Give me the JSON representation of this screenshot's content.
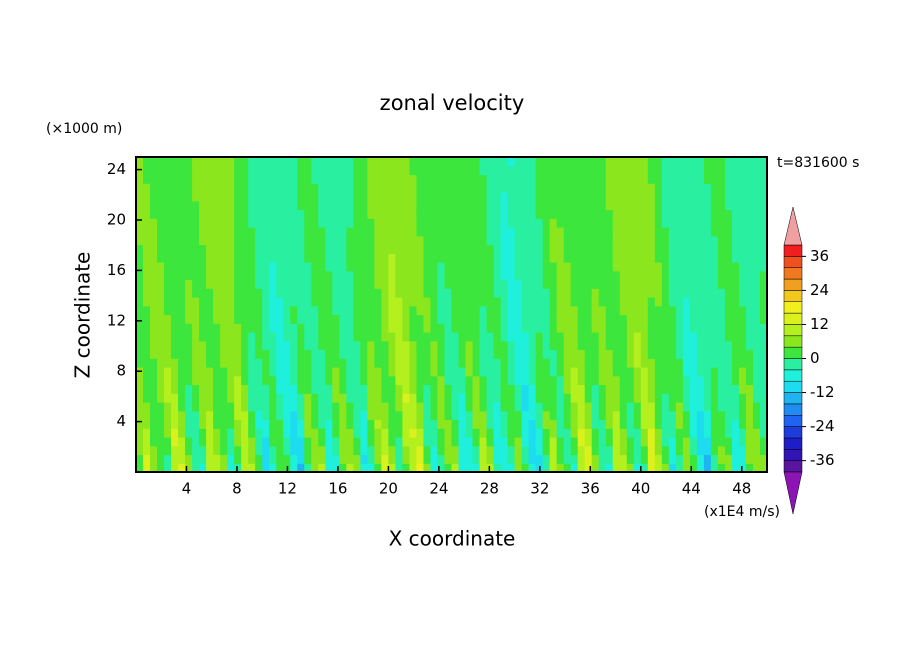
{
  "chart_data": {
    "type": "contour",
    "title": "zonal velocity",
    "y_unit_label": "(×1000 m)",
    "time_label": "t=831600 s",
    "xlabel": "X coordinate",
    "ylabel": "Z coordinate",
    "x_unit_label": "(x1E4 m/s)",
    "xlim": [
      0,
      50
    ],
    "ylim": [
      0,
      25
    ],
    "xticks": [
      4,
      8,
      12,
      16,
      20,
      24,
      28,
      32,
      36,
      40,
      44,
      48
    ],
    "yticks": [
      4,
      8,
      12,
      16,
      20,
      24
    ],
    "colorbar": {
      "levels": [
        -40,
        -36,
        -32,
        -28,
        -24,
        -20,
        -16,
        -12,
        -8,
        -4,
        0,
        4,
        8,
        12,
        16,
        20,
        24,
        28,
        32,
        36,
        40
      ],
      "colors": [
        "#5a14a0",
        "#3214b4",
        "#1e1ec8",
        "#1e3cdc",
        "#1e64f0",
        "#1e8cf0",
        "#1eb4f0",
        "#1edcf0",
        "#1ef0dc",
        "#28f0a0",
        "#3ce63c",
        "#8ce61e",
        "#b4f01e",
        "#dcf01e",
        "#f0f01e",
        "#f0c81e",
        "#f0a01e",
        "#f0781e",
        "#f0501e",
        "#f01e1e"
      ],
      "extend_colors": [
        "#8c14b4",
        "#f0a0a0"
      ],
      "ticks": [
        -36,
        -24,
        -12,
        0,
        12,
        24,
        36
      ]
    }
  }
}
